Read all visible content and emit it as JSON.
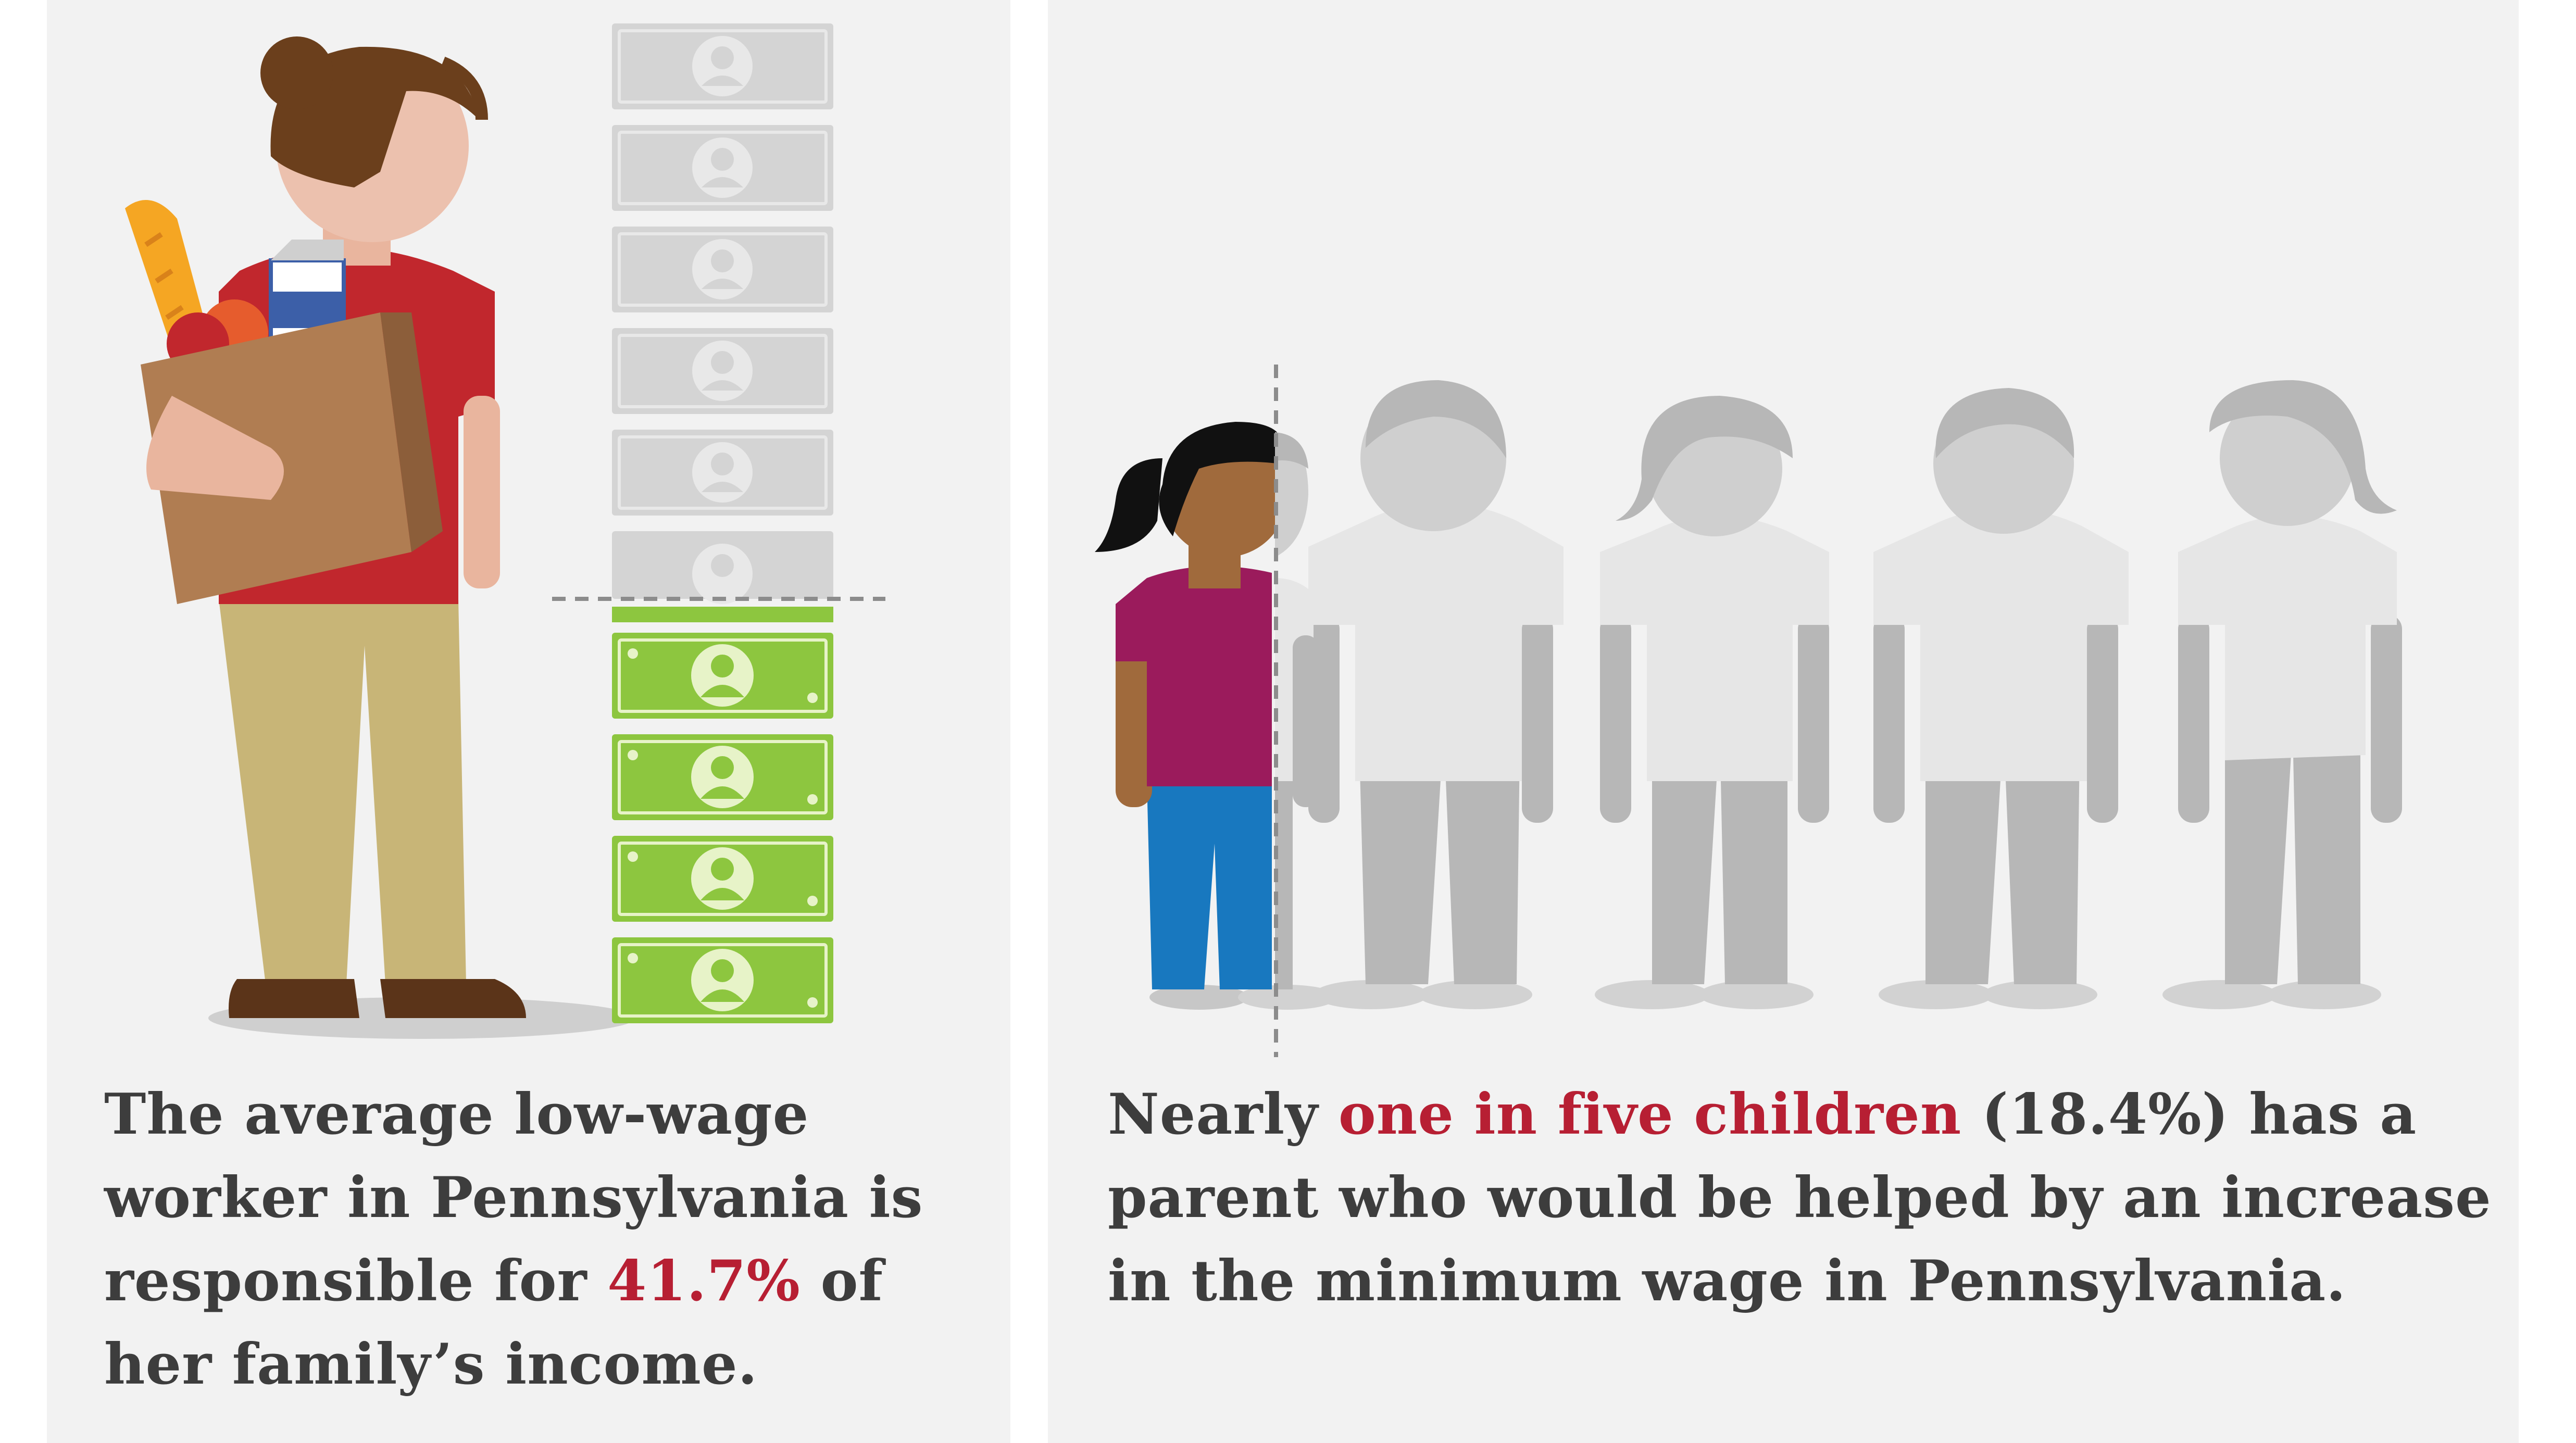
{
  "colors": {
    "panel_bg": "#f2f2f2",
    "highlight": "#b71f33",
    "text": "#3d3d3d",
    "bill_green": "#8dc63f",
    "bill_gray": "#d4d4d4",
    "shirt_red": "#c1272d",
    "shirt_magenta": "#9b1b5c",
    "pants_blue": "#1878bf"
  },
  "left": {
    "caption_pre": "The average low-wage worker in Pennsylvania is responsible for ",
    "caption_highlight": "41.7%",
    "caption_post": " of her family’s income.",
    "income_share_percent": 41.7
  },
  "right": {
    "caption_pre": "Nearly ",
    "caption_highlight": "one in five children",
    "caption_post": " (18.4%) has a parent who would be helped by an increase in the minimum wage in Pennsylvania.",
    "children_share_percent": 18.4
  },
  "icons": {
    "worker": "worker-with-groceries-icon",
    "bill": "dollar-bill-icon",
    "child": "child-icon"
  }
}
